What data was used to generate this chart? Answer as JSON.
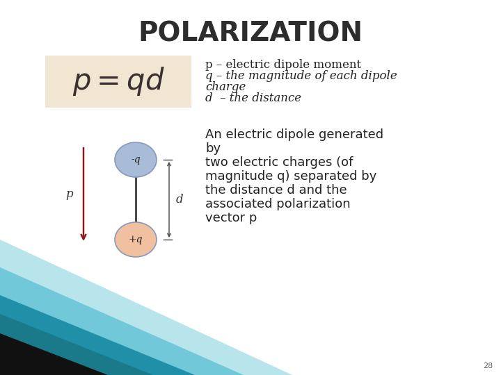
{
  "title": "POLARIZATION",
  "title_fontsize": 28,
  "title_fontweight": "bold",
  "title_color": "#2d2d2d",
  "bg_color": "#ffffff",
  "formula_box_color": "#f0e6d2",
  "formula_text": "$p = qd$",
  "formula_fontsize": 30,
  "desc_lines_top": [
    [
      "p – electric dipole moment",
      "normal"
    ],
    [
      "q – the magnitude of each dipole",
      "italic"
    ],
    [
      "charge",
      "italic"
    ],
    [
      "d  – the distance",
      "italic"
    ]
  ],
  "desc_lines_bottom": [
    "An electric dipole generated",
    "by",
    "two electric charges (of",
    "magnitude q) separated by",
    "the distance d and the",
    "associated polarization",
    "vector p"
  ],
  "desc_fontsize": 12,
  "neg_charge_color": "#a8bcd8",
  "pos_charge_color": "#f0c0a0",
  "charge_edge_color": "#8899bb",
  "charge_label_neg": "-q",
  "charge_label_pos": "+q",
  "arrow_color": "#8b1a1a",
  "slide_number": "28",
  "corner_teal_dark": "#1a7a8a",
  "corner_teal_mid": "#2090a8",
  "corner_teal_light": "#70c8d8",
  "corner_very_light": "#b8e4ec",
  "corner_black": "#111111"
}
